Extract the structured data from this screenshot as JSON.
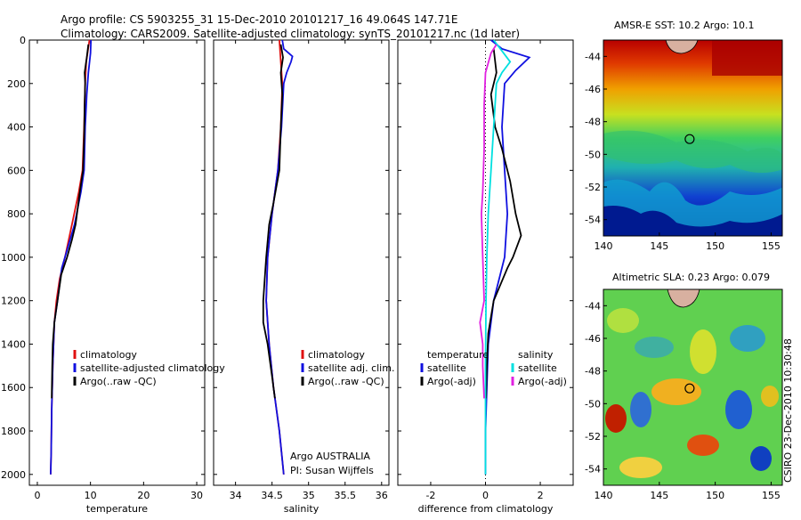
{
  "title": {
    "line1": "Argo profile: CS 5903255_31 15-Dec-2010 20101217_16 49.064S 147.71E",
    "line2": "Climatology: CARS2009. Satellite-adjusted climatology: synTS_20101217.nc (1d later)"
  },
  "side_label": "CSIRO 23-Dec-2010 10:30:48",
  "colors": {
    "climatology": "#e01010",
    "satellite": "#1010e0",
    "argo": "#000000",
    "cyan": "#00e0e0",
    "magenta": "#e020e0"
  },
  "chart_data": [
    {
      "type": "line",
      "id": "temperature",
      "xlabel": "temperature",
      "xlim": [
        -1.5,
        31.5
      ],
      "ylim": [
        0,
        2050
      ],
      "xticks": [
        0,
        10,
        20,
        30
      ],
      "yticks": [
        0,
        200,
        400,
        600,
        800,
        1000,
        1200,
        1400,
        1600,
        1800,
        2000
      ],
      "legend": [
        "climatology",
        "satellite-adjusted climatology",
        "Argo(..raw -QC)"
      ],
      "series": [
        {
          "name": "climatology",
          "color": "#e01010",
          "points": [
            [
              9.8,
              0
            ],
            [
              9.5,
              50
            ],
            [
              9.2,
              100
            ],
            [
              9.0,
              200
            ],
            [
              8.8,
              400
            ],
            [
              8.5,
              600
            ],
            [
              7.8,
              700
            ],
            [
              6.5,
              850
            ],
            [
              5.2,
              1000
            ],
            [
              4.2,
              1100
            ],
            [
              3.6,
              1200
            ],
            [
              3.2,
              1300
            ],
            [
              2.9,
              1500
            ],
            [
              2.7,
              1700
            ],
            [
              2.6,
              1900
            ],
            [
              2.5,
              2000
            ]
          ]
        },
        {
          "name": "satellite-adjusted climatology",
          "color": "#1010e0",
          "points": [
            [
              10.1,
              0
            ],
            [
              10.0,
              60
            ],
            [
              9.6,
              150
            ],
            [
              9.3,
              250
            ],
            [
              9.0,
              400
            ],
            [
              8.8,
              600
            ],
            [
              8.2,
              700
            ],
            [
              7.0,
              850
            ],
            [
              5.8,
              950
            ],
            [
              4.6,
              1050
            ],
            [
              3.8,
              1200
            ],
            [
              3.2,
              1300
            ],
            [
              2.9,
              1500
            ],
            [
              2.7,
              1700
            ],
            [
              2.6,
              1900
            ],
            [
              2.5,
              2000
            ]
          ]
        },
        {
          "name": "Argo(..raw -QC)",
          "color": "#000000",
          "points": [
            [
              9.6,
              20
            ],
            [
              9.3,
              80
            ],
            [
              8.9,
              150
            ],
            [
              9.0,
              200
            ],
            [
              8.9,
              300
            ],
            [
              8.8,
              450
            ],
            [
              8.6,
              600
            ],
            [
              8.0,
              700
            ],
            [
              7.2,
              850
            ],
            [
              6.5,
              920
            ],
            [
              5.6,
              1000
            ],
            [
              4.5,
              1080
            ],
            [
              3.8,
              1200
            ],
            [
              3.2,
              1300
            ],
            [
              2.9,
              1400
            ],
            [
              2.8,
              1500
            ],
            [
              2.7,
              1650
            ]
          ]
        }
      ]
    },
    {
      "type": "line",
      "id": "salinity",
      "xlabel": "salinity",
      "xlim": [
        33.7,
        36.1
      ],
      "ylim": [
        0,
        2050
      ],
      "xticks": [
        34,
        34.5,
        35,
        35.5,
        36
      ],
      "yticks": [
        0,
        200,
        400,
        600,
        800,
        1000,
        1200,
        1400,
        1600,
        1800,
        2000
      ],
      "legend": [
        "climatology",
        "satellite adj. clim.",
        "Argo(..raw -QC)"
      ],
      "annotations": [
        "Argo AUSTRALIA",
        "PI: Susan Wijffels"
      ],
      "series": [
        {
          "name": "climatology",
          "color": "#e01010",
          "points": [
            [
              34.6,
              0
            ],
            [
              34.62,
              100
            ],
            [
              34.64,
              200
            ],
            [
              34.62,
              400
            ],
            [
              34.58,
              600
            ],
            [
              34.5,
              800
            ],
            [
              34.44,
              1000
            ],
            [
              34.42,
              1200
            ],
            [
              34.46,
              1400
            ],
            [
              34.52,
              1600
            ],
            [
              34.6,
              1800
            ],
            [
              34.66,
              2000
            ]
          ]
        },
        {
          "name": "satellite adj. clim.",
          "color": "#1010e0",
          "points": [
            [
              34.64,
              0
            ],
            [
              34.66,
              40
            ],
            [
              34.78,
              75
            ],
            [
              34.76,
              100
            ],
            [
              34.7,
              150
            ],
            [
              34.66,
              200
            ],
            [
              34.63,
              400
            ],
            [
              34.58,
              600
            ],
            [
              34.5,
              800
            ],
            [
              34.44,
              1000
            ],
            [
              34.42,
              1200
            ],
            [
              34.46,
              1400
            ],
            [
              34.52,
              1600
            ],
            [
              34.6,
              1800
            ],
            [
              34.66,
              2000
            ]
          ]
        },
        {
          "name": "Argo(..raw -QC)",
          "color": "#000000",
          "points": [
            [
              34.62,
              20
            ],
            [
              34.65,
              80
            ],
            [
              34.62,
              150
            ],
            [
              34.64,
              250
            ],
            [
              34.62,
              400
            ],
            [
              34.6,
              600
            ],
            [
              34.52,
              750
            ],
            [
              34.46,
              850
            ],
            [
              34.42,
              1000
            ],
            [
              34.38,
              1200
            ],
            [
              34.38,
              1300
            ],
            [
              34.44,
              1400
            ],
            [
              34.5,
              1550
            ],
            [
              34.54,
              1650
            ]
          ]
        }
      ]
    },
    {
      "type": "line",
      "id": "difference",
      "xlabel": "difference from climatology",
      "xlim": [
        -3.2,
        3.2
      ],
      "ylim": [
        0,
        2050
      ],
      "xticks": [
        -2,
        0,
        2
      ],
      "yticks": [
        0,
        200,
        400,
        600,
        800,
        1000,
        1200,
        1400,
        1600,
        1800,
        2000
      ],
      "legend_temperature": [
        "temperature",
        "satellite",
        "Argo(-adj)"
      ],
      "legend_salinity": [
        "salinity",
        "satellite",
        "Argo(-adj)"
      ],
      "series": [
        {
          "name": "temperature satellite",
          "color": "#1010e0",
          "points": [
            [
              0.2,
              0
            ],
            [
              0.6,
              40
            ],
            [
              1.6,
              80
            ],
            [
              1.1,
              140
            ],
            [
              0.7,
              200
            ],
            [
              0.6,
              400
            ],
            [
              0.7,
              600
            ],
            [
              0.8,
              800
            ],
            [
              0.7,
              1000
            ],
            [
              0.3,
              1200
            ],
            [
              0.1,
              1400
            ],
            [
              0.05,
              1600
            ],
            [
              0,
              1800
            ],
            [
              0,
              2000
            ]
          ]
        },
        {
          "name": "temperature Argo(-adj)",
          "color": "#000000",
          "points": [
            [
              0.3,
              40
            ],
            [
              0.4,
              150
            ],
            [
              0.2,
              250
            ],
            [
              0.35,
              400
            ],
            [
              0.6,
              500
            ],
            [
              0.9,
              650
            ],
            [
              1.1,
              800
            ],
            [
              1.3,
              900
            ],
            [
              1.0,
              1000
            ],
            [
              0.8,
              1050
            ],
            [
              0.3,
              1200
            ],
            [
              0.1,
              1350
            ],
            [
              0.05,
              1500
            ],
            [
              0.02,
              1650
            ]
          ]
        },
        {
          "name": "salinity satellite",
          "color": "#00e0e0",
          "points": [
            [
              0.3,
              0
            ],
            [
              0.6,
              50
            ],
            [
              0.9,
              100
            ],
            [
              0.6,
              150
            ],
            [
              0.4,
              200
            ],
            [
              0.3,
              400
            ],
            [
              0.2,
              600
            ],
            [
              0.1,
              800
            ],
            [
              0.05,
              1000
            ],
            [
              0.02,
              1200
            ],
            [
              0,
              1500
            ],
            [
              0,
              2000
            ]
          ]
        },
        {
          "name": "salinity Argo(-adj)",
          "color": "#e020e0",
          "points": [
            [
              0.4,
              20
            ],
            [
              0.2,
              60
            ],
            [
              0,
              150
            ],
            [
              -0.05,
              300
            ],
            [
              -0.05,
              500
            ],
            [
              -0.1,
              700
            ],
            [
              -0.15,
              800
            ],
            [
              -0.1,
              1000
            ],
            [
              -0.05,
              1200
            ],
            [
              -0.2,
              1300
            ],
            [
              -0.1,
              1400
            ],
            [
              -0.1,
              1500
            ],
            [
              -0.05,
              1650
            ]
          ]
        }
      ]
    },
    {
      "type": "heatmap",
      "id": "sst",
      "title": "AMSR-E SST: 10.2 Argo: 10.1",
      "xlim": [
        140,
        156
      ],
      "ylim": [
        -55,
        -43
      ],
      "xticks": [
        140,
        145,
        150,
        155
      ],
      "yticks": [
        -44,
        -46,
        -48,
        -50,
        -52,
        -54
      ],
      "argo_position": [
        147.71,
        -49.064
      ]
    },
    {
      "type": "heatmap",
      "id": "sla",
      "title": "Altimetric SLA: 0.23 Argo: 0.079",
      "xlim": [
        140,
        156
      ],
      "ylim": [
        -55,
        -43
      ],
      "xticks": [
        140,
        145,
        150,
        155
      ],
      "yticks": [
        -44,
        -46,
        -48,
        -50,
        -52,
        -54
      ],
      "argo_position": [
        147.71,
        -49.064
      ]
    }
  ]
}
